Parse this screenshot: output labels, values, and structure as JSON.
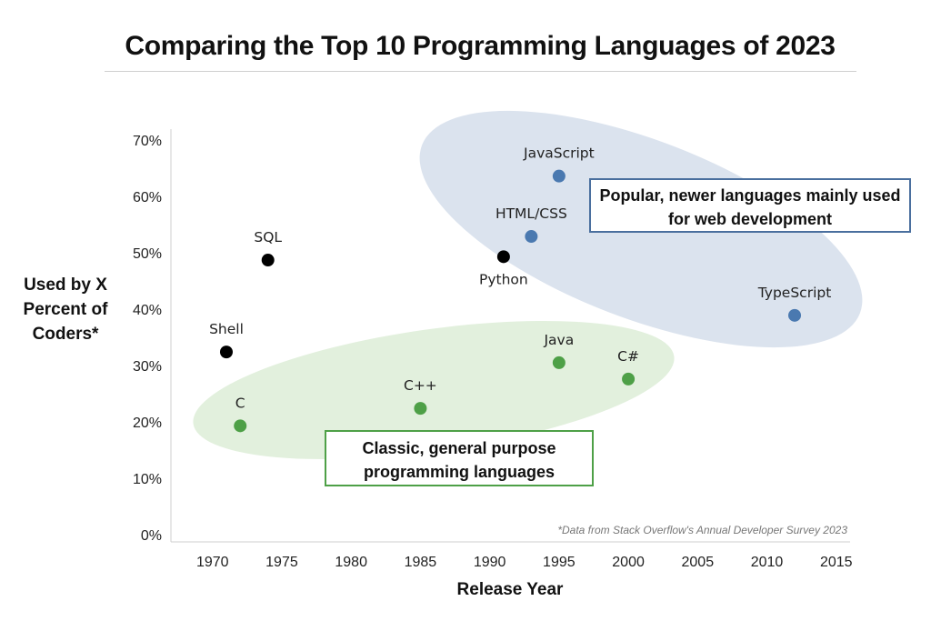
{
  "title": "Comparing the Top 10 Programming Languages of 2023",
  "note": "*Data from Stack Overflow's Annual Developer Survey 2023",
  "callouts": {
    "web": "Popular, newer languages mainly used for web development",
    "classic": "Classic, general purpose programming languages"
  },
  "colors": {
    "web": "#4a79b0",
    "classic": "#4ea047",
    "other": "#000000",
    "web_region": "#dbe3ee",
    "classic_region": "#e2f0dd"
  },
  "chart_data": {
    "type": "scatter",
    "title": "Comparing the Top 10 Programming Languages of 2023",
    "xlabel": "Release Year",
    "ylabel": "Used by X Percent of Coders*",
    "xlim": [
      1967,
      2016
    ],
    "ylim": [
      0,
      70
    ],
    "x_ticks": [
      1970,
      1975,
      1980,
      1985,
      1990,
      1995,
      2000,
      2005,
      2010,
      2015
    ],
    "y_ticks": [
      0,
      10,
      20,
      30,
      40,
      50,
      60,
      70
    ],
    "y_tick_format": "percent",
    "grid": false,
    "points": [
      {
        "label": "JavaScript",
        "x": 1995,
        "y": 63.6,
        "group": "web"
      },
      {
        "label": "HTML/CSS",
        "x": 1993,
        "y": 52.9,
        "group": "web"
      },
      {
        "label": "TypeScript",
        "x": 2012,
        "y": 38.9,
        "group": "web"
      },
      {
        "label": "Python",
        "x": 1991,
        "y": 49.3,
        "group": "other"
      },
      {
        "label": "SQL",
        "x": 1974,
        "y": 48.7,
        "group": "other"
      },
      {
        "label": "Shell",
        "x": 1971,
        "y": 32.4,
        "group": "other"
      },
      {
        "label": "Java",
        "x": 1995,
        "y": 30.5,
        "group": "classic"
      },
      {
        "label": "C#",
        "x": 2000,
        "y": 27.6,
        "group": "classic"
      },
      {
        "label": "C++",
        "x": 1985,
        "y": 22.4,
        "group": "classic"
      },
      {
        "label": "C",
        "x": 1972,
        "y": 19.3,
        "group": "classic"
      }
    ]
  }
}
